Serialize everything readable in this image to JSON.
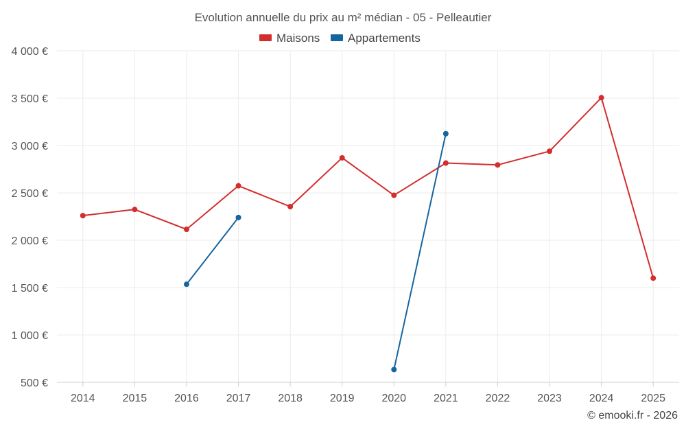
{
  "chart_data": {
    "type": "line",
    "title": "Evolution annuelle du prix au m² médian - 05 - Pelleautier",
    "categories": [
      "2014",
      "2015",
      "2016",
      "2017",
      "2018",
      "2019",
      "2020",
      "2021",
      "2022",
      "2023",
      "2024",
      "2025"
    ],
    "y_tick_labels": [
      "500 €",
      "1 000 €",
      "1 500 €",
      "2 000 €",
      "2 500 €",
      "3 000 €",
      "3 500 €",
      "4 000 €"
    ],
    "y_ticks": [
      500,
      1000,
      1500,
      2000,
      2500,
      3000,
      3500,
      4000
    ],
    "ylim": [
      500,
      4000
    ],
    "grid": true,
    "legend_position": "top-center",
    "series": [
      {
        "name": "Maisons",
        "color": "#d42d2d",
        "values": [
          2260,
          2325,
          2115,
          2575,
          2355,
          2870,
          2475,
          2815,
          2795,
          2940,
          3505,
          1600
        ]
      },
      {
        "name": "Appartements",
        "color": "#1565a0",
        "values": [
          null,
          null,
          1535,
          2240,
          null,
          null,
          635,
          3125,
          null,
          null,
          null,
          null
        ]
      }
    ],
    "credit": "© emooki.fr - 2026"
  }
}
